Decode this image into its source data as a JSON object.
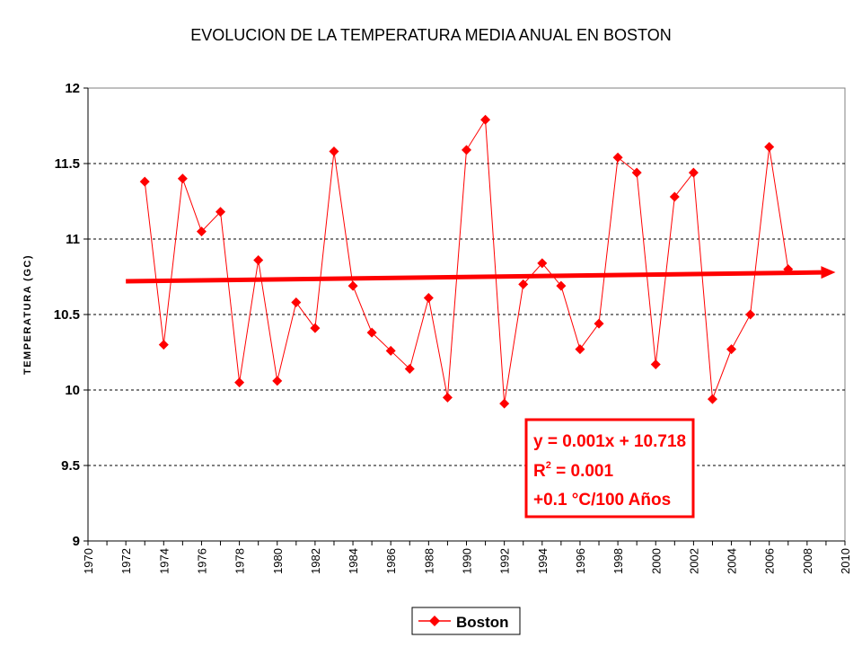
{
  "chart_data": {
    "type": "line",
    "title": "EVOLUCION DE LA TEMPERATURA MEDIA ANUAL EN BOSTON",
    "xlabel": "",
    "ylabel": "TEMPERATURA (GC)",
    "xlim": [
      1970,
      2010
    ],
    "ylim": [
      9,
      12
    ],
    "x_ticks": [
      "1970",
      "1972",
      "1974",
      "1976",
      "1978",
      "1980",
      "1982",
      "1984",
      "1986",
      "1988",
      "1990",
      "1992",
      "1994",
      "1996",
      "1998",
      "2000",
      "2002",
      "2004",
      "2006",
      "2008",
      "2010"
    ],
    "y_ticks": [
      "9",
      "9.5",
      "10",
      "10.5",
      "11",
      "11.5",
      "12"
    ],
    "grid": "horizontal dashed",
    "legend_position": "bottom",
    "series": [
      {
        "name": "Boston",
        "color": "#ff0000",
        "marker": "diamond",
        "x": [
          1973,
          1974,
          1975,
          1976,
          1977,
          1978,
          1979,
          1980,
          1981,
          1982,
          1983,
          1984,
          1985,
          1986,
          1987,
          1988,
          1989,
          1990,
          1991,
          1992,
          1993,
          1994,
          1995,
          1996,
          1997,
          1998,
          1999,
          2000,
          2001,
          2002,
          2003,
          2004,
          2005,
          2006,
          2007
        ],
        "y": [
          11.38,
          10.3,
          11.4,
          11.05,
          11.18,
          10.05,
          10.86,
          10.06,
          10.58,
          10.41,
          11.58,
          10.69,
          10.38,
          10.26,
          10.14,
          10.61,
          9.95,
          11.59,
          11.79,
          9.91,
          10.7,
          10.84,
          10.69,
          10.27,
          10.44,
          11.54,
          11.44,
          10.17,
          11.28,
          11.44,
          9.94,
          10.27,
          10.5,
          11.61,
          10.8
        ]
      }
    ],
    "trendline": {
      "color": "#ff0000",
      "start": {
        "x": 1972,
        "y": 10.72
      },
      "end": {
        "x": 2009.5,
        "y": 10.78
      },
      "equation": "y = 0.001x + 10.718",
      "r2_label": "R",
      "r2_superscript": "2",
      "r2_value": " = 0.001",
      "note": "+0.1 °C/100 Años"
    }
  }
}
